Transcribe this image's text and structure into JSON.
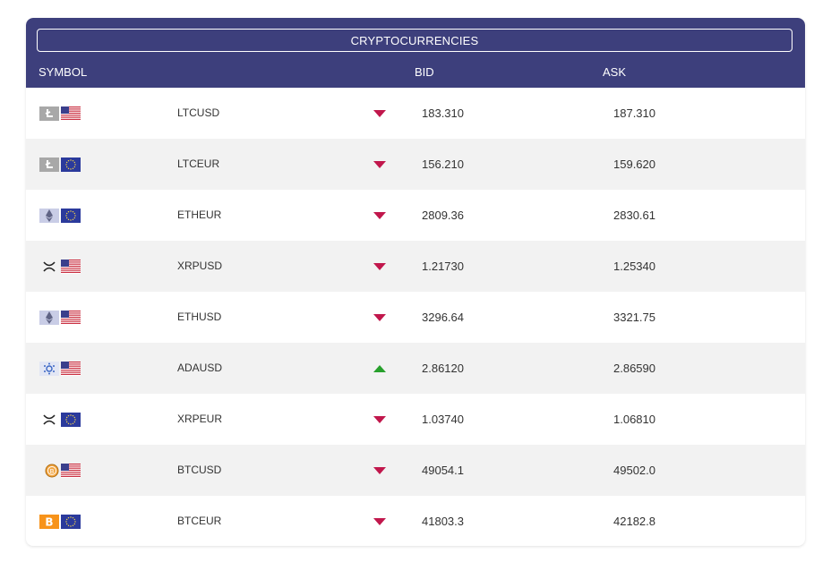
{
  "widget": {
    "title": "CRYPTOCURRENCIES",
    "headers": {
      "symbol": "SYMBOL",
      "bid": "BID",
      "ask": "ASK"
    }
  },
  "colors": {
    "header_bg": "#3d3f7c",
    "down": "#c1174c",
    "up": "#27a02c",
    "row_alt": "#f2f2f2"
  },
  "rows": [
    {
      "symbol": "LTCUSD",
      "bid": "183.310",
      "ask": "187.310",
      "coin_icon": "litecoin-icon",
      "flag_icon": "us-flag-icon",
      "trend": "down"
    },
    {
      "symbol": "LTCEUR",
      "bid": "156.210",
      "ask": "159.620",
      "coin_icon": "litecoin-icon",
      "flag_icon": "eu-flag-icon",
      "trend": "down"
    },
    {
      "symbol": "ETHEUR",
      "bid": "2809.36",
      "ask": "2830.61",
      "coin_icon": "ethereum-icon",
      "flag_icon": "eu-flag-icon",
      "trend": "down"
    },
    {
      "symbol": "XRPUSD",
      "bid": "1.21730",
      "ask": "1.25340",
      "coin_icon": "xrp-icon",
      "flag_icon": "us-flag-icon",
      "trend": "down"
    },
    {
      "symbol": "ETHUSD",
      "bid": "3296.64",
      "ask": "3321.75",
      "coin_icon": "ethereum-icon",
      "flag_icon": "us-flag-icon",
      "trend": "down"
    },
    {
      "symbol": "ADAUSD",
      "bid": "2.86120",
      "ask": "2.86590",
      "coin_icon": "cardano-icon",
      "flag_icon": "us-flag-icon",
      "trend": "up"
    },
    {
      "symbol": "XRPEUR",
      "bid": "1.03740",
      "ask": "1.06810",
      "coin_icon": "xrp-icon",
      "flag_icon": "eu-flag-icon",
      "trend": "down"
    },
    {
      "symbol": "BTCUSD",
      "bid": "49054.1",
      "ask": "49502.0",
      "coin_icon": "bitcoin-coin-icon",
      "flag_icon": "us-flag-icon",
      "trend": "down"
    },
    {
      "symbol": "BTCEUR",
      "bid": "41803.3",
      "ask": "42182.8",
      "coin_icon": "bitcoin-icon",
      "flag_icon": "eu-flag-icon",
      "trend": "down"
    }
  ]
}
